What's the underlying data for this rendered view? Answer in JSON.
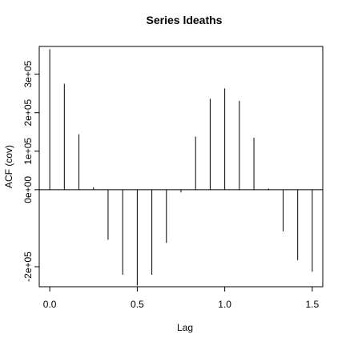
{
  "chart_data": {
    "type": "bar",
    "title": "Series  ldeaths",
    "xlabel": "Lag",
    "ylabel": "ACF (cov)",
    "xlim": [
      -0.06,
      1.56
    ],
    "ylim": [
      -252000.0,
      372000.0
    ],
    "x_ticks": [
      {
        "value": 0.0,
        "label": "0.0"
      },
      {
        "value": 0.5,
        "label": "0.5"
      },
      {
        "value": 1.0,
        "label": "1.0"
      },
      {
        "value": 1.5,
        "label": "1.5"
      }
    ],
    "y_ticks": [
      {
        "value": -200000,
        "label": "-2e+05"
      },
      {
        "value": 0,
        "label": "0e+00"
      },
      {
        "value": 100000,
        "label": "1e+05"
      },
      {
        "value": 200000,
        "label": "2e+05"
      },
      {
        "value": 300000,
        "label": "3e+05"
      }
    ],
    "x": [
      0.0,
      0.0833,
      0.1667,
      0.25,
      0.3333,
      0.4167,
      0.5,
      0.5833,
      0.6667,
      0.75,
      0.8333,
      0.9167,
      1.0,
      1.0833,
      1.1667,
      1.25,
      1.3333,
      1.4167,
      1.5
    ],
    "values": [
      365000,
      275000,
      144000,
      6000,
      -130000,
      -221000,
      -249000,
      -221000,
      -138000,
      -7000,
      138000,
      236000,
      263000,
      231000,
      135000,
      3000,
      -108000,
      -183000,
      -213000
    ]
  }
}
